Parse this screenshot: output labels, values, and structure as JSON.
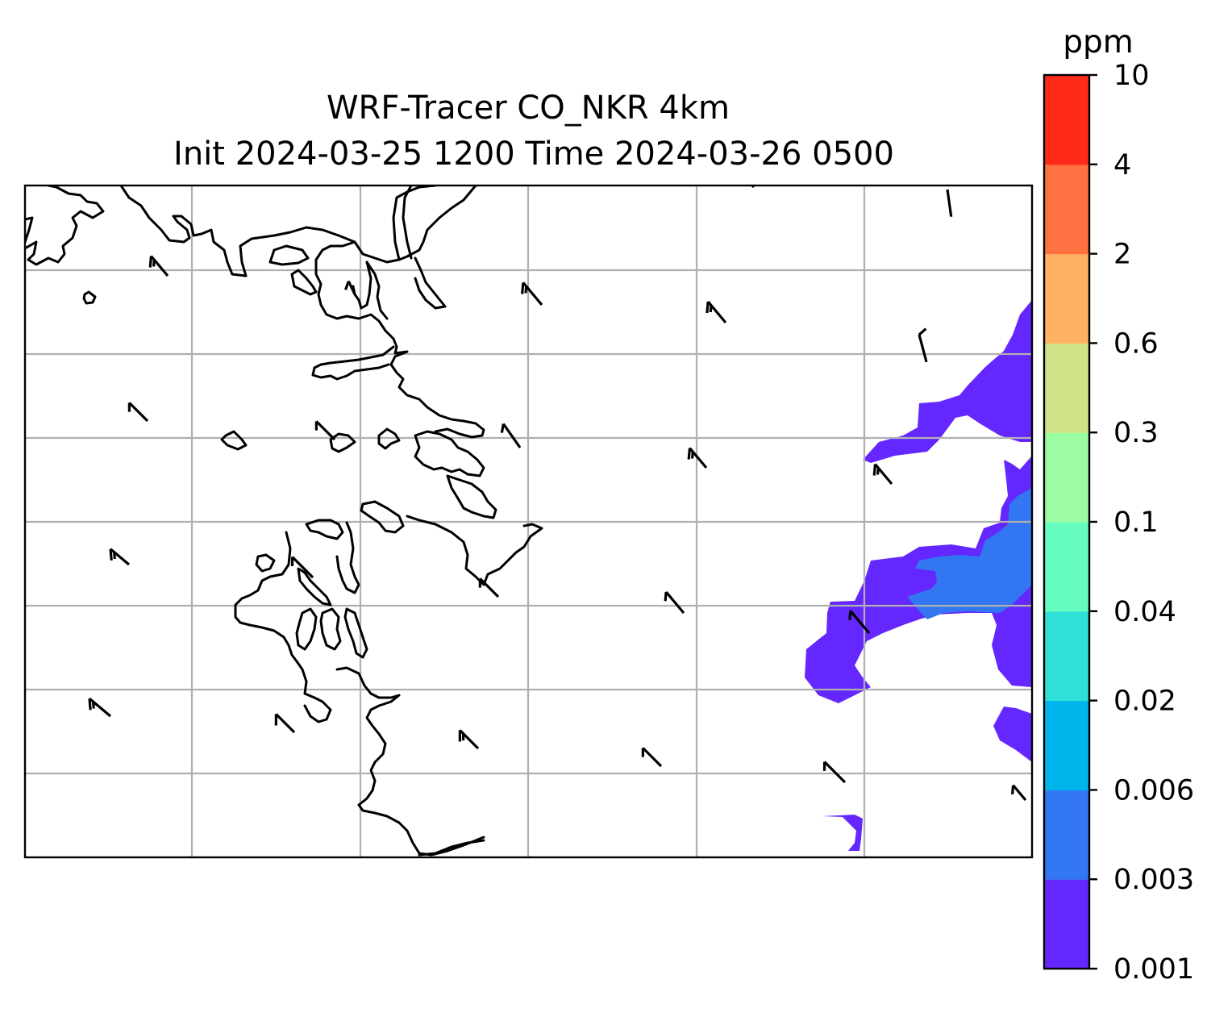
{
  "title": {
    "line1": "WRF-Tracer CO_NKR 4km",
    "line2": "Init 2024-03-25 1200 Time 2024-03-26 0500"
  },
  "colorbar": {
    "unit": "ppm",
    "levels": [
      "0.001",
      "0.003",
      "0.006",
      "0.02",
      "0.04",
      "0.1",
      "0.3",
      "0.6",
      "2",
      "4",
      "10"
    ],
    "colors": [
      "#6427ff",
      "#3376f2",
      "#00b5eb",
      "#2fe0d6",
      "#66fbbf",
      "#9cfca2",
      "#cfe288",
      "#ffb163",
      "#ff7140",
      "#ff2a1a"
    ]
  },
  "map": {
    "gridlines": true,
    "features": [
      "coastline",
      "gridlines",
      "wind-barbs",
      "tracer-concentration-fill"
    ],
    "filled_levels_shown": [
      "0.001-0.003",
      "0.003-0.006"
    ]
  }
}
